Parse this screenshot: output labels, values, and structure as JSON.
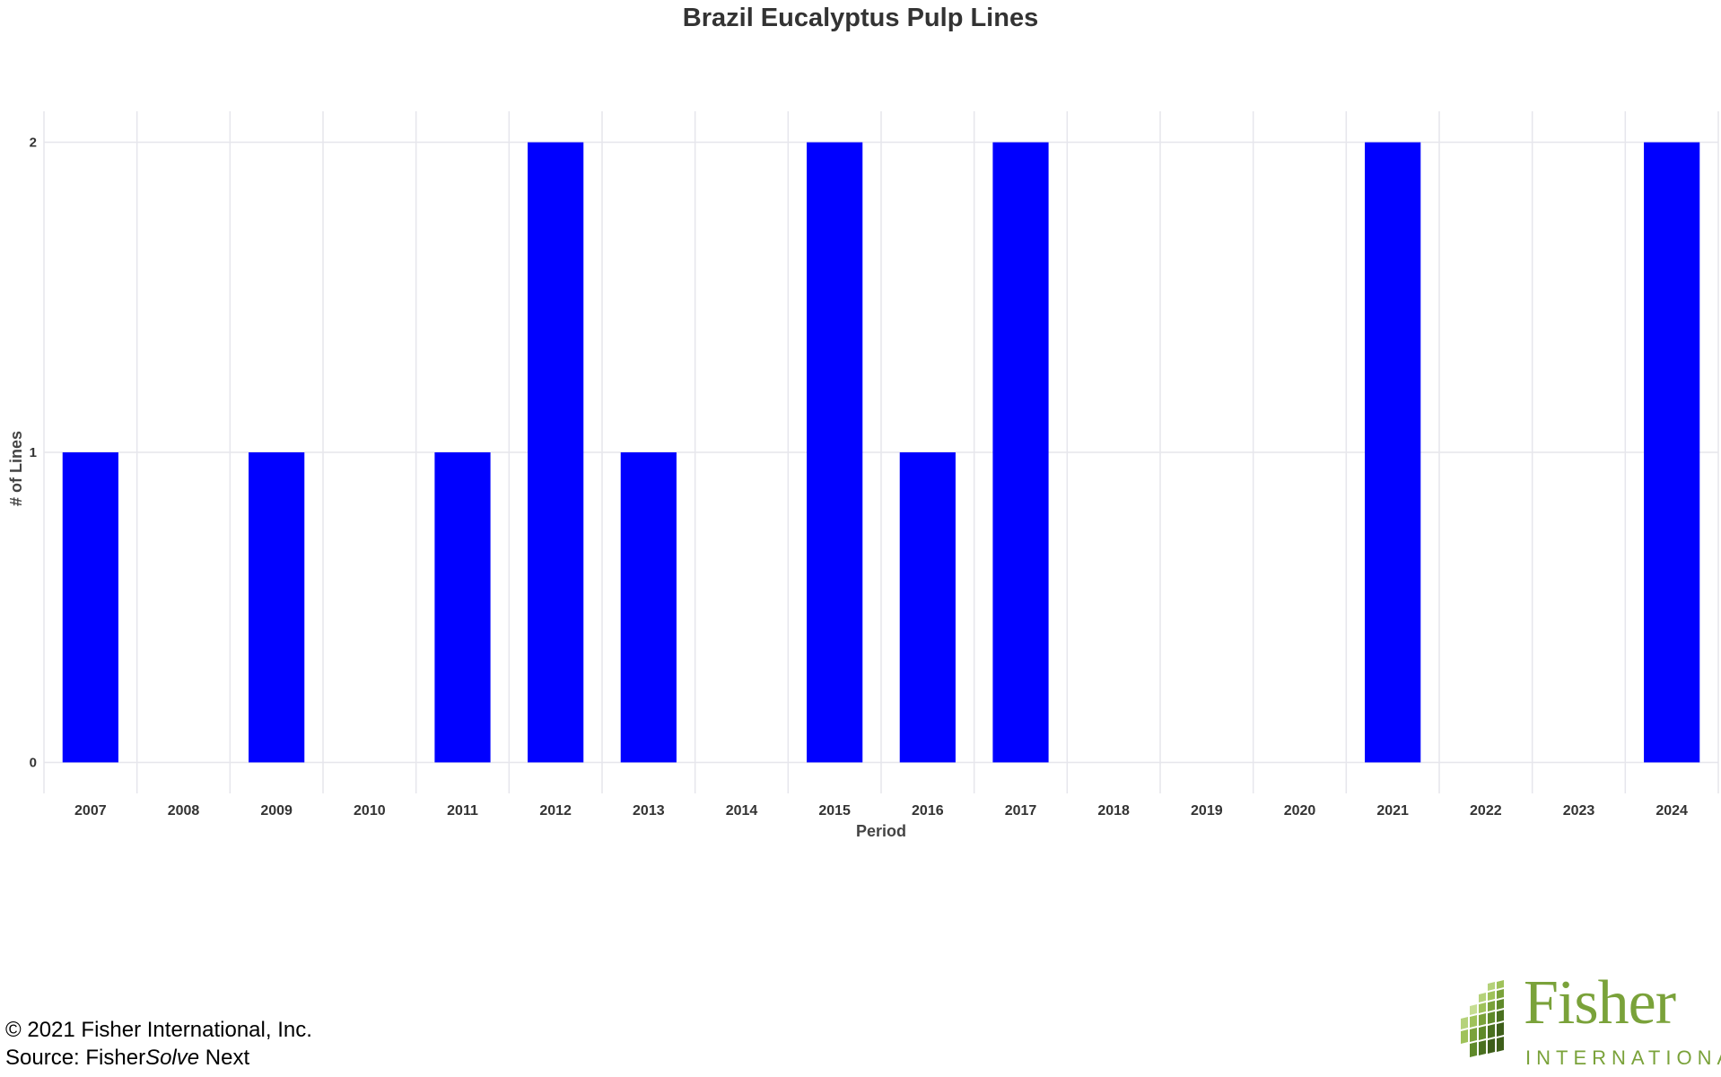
{
  "chart_data": {
    "type": "bar",
    "title": "Brazil Eucalyptus Pulp Lines",
    "xlabel": "Period",
    "ylabel": "# of Lines",
    "categories": [
      "2007",
      "2008",
      "2009",
      "2010",
      "2011",
      "2012",
      "2013",
      "2014",
      "2015",
      "2016",
      "2017",
      "2018",
      "2019",
      "2020",
      "2021",
      "2022",
      "2023",
      "2024"
    ],
    "values": [
      1,
      0,
      1,
      0,
      1,
      2,
      1,
      0,
      2,
      1,
      2,
      0,
      0,
      0,
      2,
      0,
      0,
      2
    ],
    "ylim": [
      -0.1,
      2.1
    ],
    "yticks": [
      0,
      1,
      2
    ],
    "grid": true,
    "bar_color": "#0000ff",
    "grid_color": "#e6e6ec"
  },
  "footer": {
    "copyright": "© 2021 Fisher International, Inc.",
    "source_prefix": "Source: Fisher",
    "source_italic": "Solve",
    "source_suffix": " Next"
  },
  "logo": {
    "name": "Fisher",
    "subtitle": "INTERNATIONAL",
    "color": "#7aa23a"
  }
}
